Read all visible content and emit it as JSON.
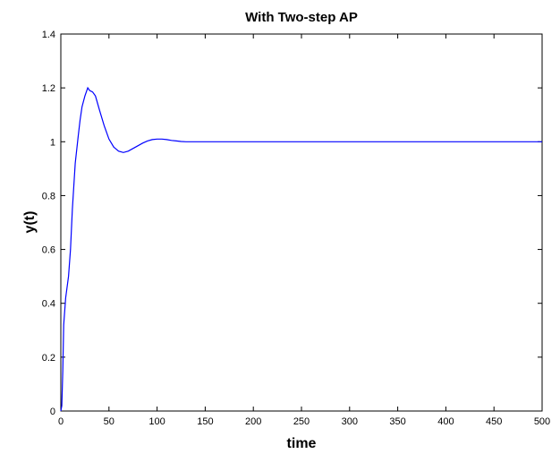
{
  "chart_data": {
    "type": "line",
    "title": "With Two-step AP",
    "xlabel": "time",
    "ylabel": "y(t)",
    "xlim": [
      0,
      500
    ],
    "ylim": [
      0,
      1.4
    ],
    "xticks": [
      0,
      50,
      100,
      150,
      200,
      250,
      300,
      350,
      400,
      450,
      500
    ],
    "yticks": [
      0,
      0.2,
      0.4,
      0.6,
      0.8,
      1,
      1.2,
      1.4
    ],
    "grid": false,
    "series": [
      {
        "color": "#0000ff",
        "x": [
          0,
          1,
          2,
          3,
          5,
          8,
          10,
          12,
          15,
          18,
          20,
          22,
          25,
          28,
          30,
          33,
          36,
          40,
          45,
          50,
          55,
          60,
          65,
          70,
          75,
          80,
          85,
          90,
          95,
          100,
          105,
          110,
          115,
          120,
          125,
          130,
          140,
          150,
          200,
          250,
          300,
          350,
          400,
          450,
          500
        ],
        "y": [
          0,
          0.02,
          0.15,
          0.32,
          0.42,
          0.5,
          0.6,
          0.75,
          0.92,
          1.02,
          1.08,
          1.13,
          1.17,
          1.2,
          1.19,
          1.185,
          1.17,
          1.12,
          1.06,
          1.01,
          0.98,
          0.965,
          0.96,
          0.965,
          0.975,
          0.985,
          0.995,
          1.003,
          1.008,
          1.01,
          1.01,
          1.008,
          1.005,
          1.003,
          1.001,
          1.0,
          1.0,
          1.0,
          1.0,
          1.0,
          1.0,
          1.0,
          1.0,
          1.0,
          1.0
        ]
      }
    ]
  }
}
